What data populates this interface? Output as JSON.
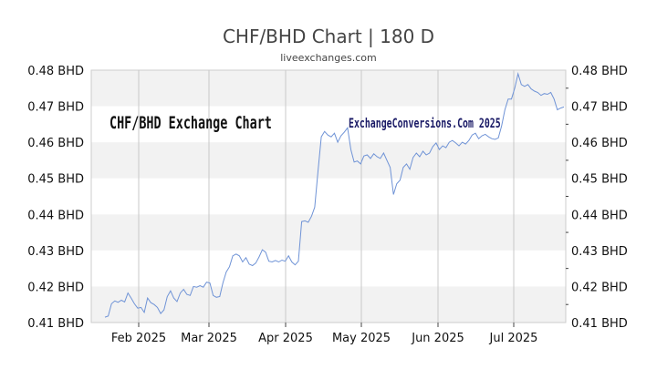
{
  "chart_data": {
    "type": "line",
    "title": "CHF/BHD Chart | 180 D",
    "subtitle": "liveexchanges.com",
    "xlabel": "",
    "ylabel": "",
    "ylim": [
      0.41,
      0.48
    ],
    "y_ticks": [
      "0.41 BHD",
      "0.42 BHD",
      "0.43 BHD",
      "0.44 BHD",
      "0.45 BHD",
      "0.46 BHD",
      "0.47 BHD",
      "0.48 BHD"
    ],
    "x_ticks": [
      "Feb 2025",
      "Mar 2025",
      "Apr 2025",
      "May 2025",
      "Jun 2025",
      "Jul 2025"
    ],
    "grid": true,
    "watermark_left": "CHF/BHD Exchange Chart",
    "watermark_right": "ExchangeConversions.Com 2025",
    "line_color": "#6f93d6",
    "series": [
      {
        "values": [
          0.4115,
          0.4118,
          0.4152,
          0.416,
          0.4156,
          0.4162,
          0.4157,
          0.4182,
          0.4168,
          0.4152,
          0.414,
          0.4142,
          0.4128,
          0.4168,
          0.4155,
          0.415,
          0.4142,
          0.4125,
          0.4135,
          0.4172,
          0.4188,
          0.4168,
          0.4158,
          0.4182,
          0.4192,
          0.4178,
          0.4175,
          0.42,
          0.4198,
          0.4202,
          0.4198,
          0.4212,
          0.421,
          0.4175,
          0.417,
          0.4172,
          0.421,
          0.424,
          0.4255,
          0.4285,
          0.429,
          0.4285,
          0.4268,
          0.428,
          0.4262,
          0.4258,
          0.4265,
          0.4282,
          0.4302,
          0.4295,
          0.427,
          0.4268,
          0.4272,
          0.4268,
          0.4273,
          0.427,
          0.4285,
          0.4268,
          0.426,
          0.427,
          0.438,
          0.4382,
          0.4378,
          0.4395,
          0.442,
          0.452,
          0.4615,
          0.463,
          0.462,
          0.4615,
          0.4625,
          0.46,
          0.4618,
          0.4628,
          0.464,
          0.458,
          0.4545,
          0.4548,
          0.454,
          0.4562,
          0.4565,
          0.4555,
          0.4568,
          0.456,
          0.4555,
          0.457,
          0.455,
          0.453,
          0.4455,
          0.4485,
          0.4495,
          0.453,
          0.454,
          0.4525,
          0.4558,
          0.457,
          0.456,
          0.4575,
          0.4565,
          0.457,
          0.4588,
          0.4598,
          0.458,
          0.459,
          0.4585,
          0.46,
          0.4605,
          0.4598,
          0.459,
          0.46,
          0.4595,
          0.4605,
          0.462,
          0.4625,
          0.461,
          0.4618,
          0.4622,
          0.4615,
          0.461,
          0.4608,
          0.4612,
          0.4645,
          0.469,
          0.472,
          0.472,
          0.475,
          0.479,
          0.476,
          0.4755,
          0.476,
          0.4748,
          0.4742,
          0.4738,
          0.473,
          0.4735,
          0.4733,
          0.4738,
          0.472,
          0.469,
          0.4695,
          0.4698
        ]
      }
    ]
  }
}
